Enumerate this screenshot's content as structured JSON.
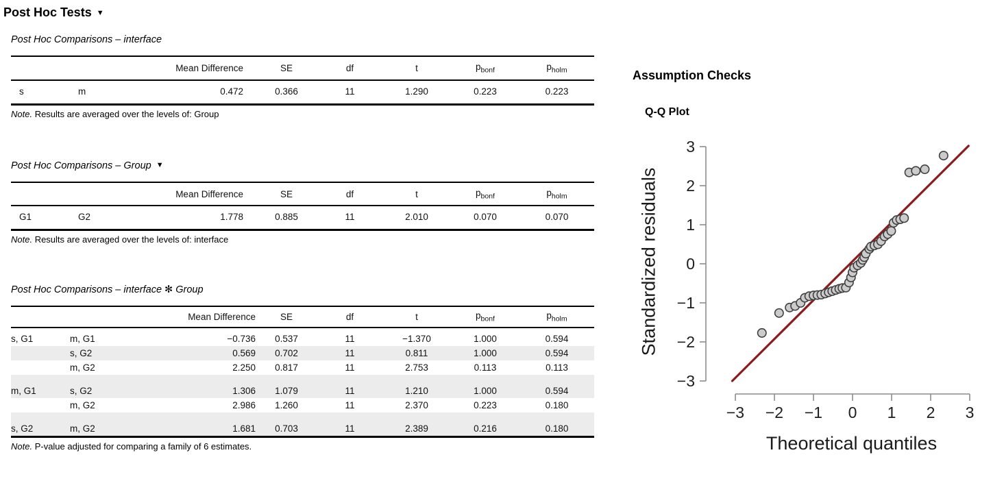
{
  "page": {
    "title": "Post Hoc Tests",
    "caret": "▼"
  },
  "tables": [
    {
      "caption": "Post Hoc Comparisons – interface",
      "columns": [
        "",
        "",
        "Mean Difference",
        "SE",
        "df",
        "t",
        {
          "base": "p",
          "sub": "bonf"
        },
        {
          "base": "p",
          "sub": "holm"
        }
      ],
      "rows": [
        [
          "s",
          "m",
          "0.472",
          "0.366",
          "11",
          "1.290",
          "0.223",
          "0.223"
        ]
      ],
      "shaded_rows": [],
      "group_start_rows": [],
      "note_prefix": "Note.",
      "note_text": " Results are averaged over the levels of: Group"
    },
    {
      "caption": "Post Hoc Comparisons – Group",
      "caret": "▼",
      "columns": [
        "",
        "",
        "Mean Difference",
        "SE",
        "df",
        "t",
        {
          "base": "p",
          "sub": "bonf"
        },
        {
          "base": "p",
          "sub": "holm"
        }
      ],
      "rows": [
        [
          "G1",
          "G2",
          "1.778",
          "0.885",
          "11",
          "2.010",
          "0.070",
          "0.070"
        ]
      ],
      "shaded_rows": [],
      "group_start_rows": [],
      "note_prefix": "Note.",
      "note_text": " Results are averaged over the levels of: interface"
    },
    {
      "caption": "Post Hoc Comparisons – interface ✻ Group",
      "columns": [
        "",
        "",
        "Mean Difference",
        "SE",
        "df",
        "t",
        {
          "base": "p",
          "sub": "bonf"
        },
        {
          "base": "p",
          "sub": "holm"
        }
      ],
      "rows": [
        [
          "s, G1",
          "m, G1",
          "−0.736",
          "0.537",
          "11",
          "−1.370",
          "1.000",
          "0.594"
        ],
        [
          "",
          "s, G2",
          "0.569",
          "0.702",
          "11",
          "0.811",
          "1.000",
          "0.594"
        ],
        [
          "",
          "m, G2",
          "2.250",
          "0.817",
          "11",
          "2.753",
          "0.113",
          "0.113"
        ],
        [
          "m, G1",
          "s, G2",
          "1.306",
          "1.079",
          "11",
          "1.210",
          "1.000",
          "0.594"
        ],
        [
          "",
          "m, G2",
          "2.986",
          "1.260",
          "11",
          "2.370",
          "0.223",
          "0.180"
        ],
        [
          "s, G2",
          "m, G2",
          "1.681",
          "0.703",
          "11",
          "2.389",
          "0.216",
          "0.180"
        ]
      ],
      "shaded_rows": [
        1,
        3,
        5
      ],
      "group_start_rows": [
        3,
        5
      ],
      "note_prefix": "Note.",
      "note_text": " P-value adjusted for comparing a family of 6 estimates."
    }
  ],
  "assumption": {
    "heading": "Assumption Checks"
  },
  "chart_data": {
    "type": "scatter",
    "title": "Q-Q Plot",
    "xlabel": "Theoretical quantiles",
    "ylabel": "Standardized residuals",
    "xlim": [
      -3,
      3
    ],
    "ylim": [
      -3,
      3
    ],
    "xticks": [
      "−3",
      "−2",
      "−1",
      "0",
      "1",
      "2",
      "3"
    ],
    "yticks": [
      "3",
      "2",
      "1",
      "0",
      "−1",
      "−2",
      "−3"
    ],
    "xtick_values": [
      -3,
      -2,
      -1,
      0,
      1,
      2,
      3
    ],
    "ytick_values": [
      3,
      2,
      1,
      0,
      -1,
      -2,
      -3
    ],
    "grid": false,
    "legend": "none",
    "reference_line": {
      "x1": -3.08,
      "y1": -3.0,
      "x2": 2.97,
      "y2": 3.02,
      "color": "#8b1c1c"
    },
    "point_fill": "#cbcbcb",
    "point_stroke": "#3f3f3f",
    "axis_color": "#8c8c8c",
    "points": [
      [
        -2.32,
        -1.77
      ],
      [
        -1.88,
        -1.26
      ],
      [
        -1.61,
        -1.12
      ],
      [
        -1.47,
        -1.08
      ],
      [
        -1.33,
        -1.0
      ],
      [
        -1.22,
        -0.87
      ],
      [
        -1.11,
        -0.83
      ],
      [
        -1.0,
        -0.81
      ],
      [
        -0.9,
        -0.8
      ],
      [
        -0.8,
        -0.79
      ],
      [
        -0.7,
        -0.76
      ],
      [
        -0.61,
        -0.73
      ],
      [
        -0.52,
        -0.7
      ],
      [
        -0.43,
        -0.67
      ],
      [
        -0.34,
        -0.64
      ],
      [
        -0.26,
        -0.62
      ],
      [
        -0.17,
        -0.61
      ],
      [
        -0.09,
        -0.48
      ],
      [
        -0.04,
        -0.35
      ],
      [
        0.0,
        -0.22
      ],
      [
        0.04,
        -0.1
      ],
      [
        0.13,
        -0.04
      ],
      [
        0.21,
        0.02
      ],
      [
        0.26,
        0.1
      ],
      [
        0.3,
        0.17
      ],
      [
        0.34,
        0.26
      ],
      [
        0.43,
        0.38
      ],
      [
        0.47,
        0.44
      ],
      [
        0.56,
        0.47
      ],
      [
        0.65,
        0.5
      ],
      [
        0.73,
        0.58
      ],
      [
        0.82,
        0.7
      ],
      [
        0.9,
        0.76
      ],
      [
        0.99,
        0.84
      ],
      [
        1.05,
        1.05
      ],
      [
        1.13,
        1.12
      ],
      [
        1.22,
        1.14
      ],
      [
        1.32,
        1.17
      ],
      [
        1.45,
        2.34
      ],
      [
        1.62,
        2.38
      ],
      [
        1.85,
        2.42
      ],
      [
        2.33,
        2.77
      ]
    ]
  }
}
